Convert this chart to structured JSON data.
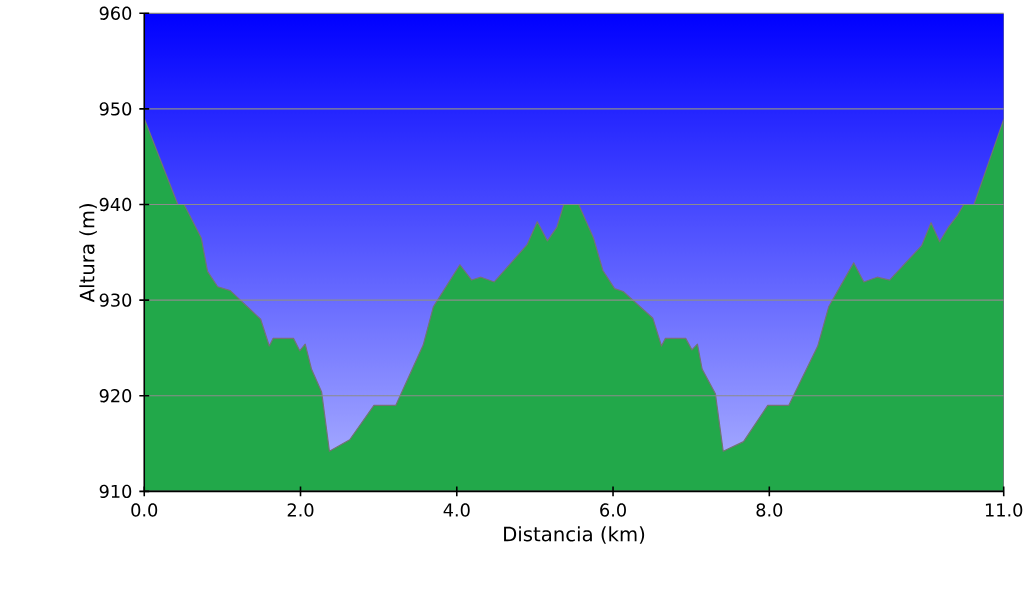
{
  "chart_data": {
    "type": "area",
    "xlabel": "Distancia   (km)",
    "ylabel": "Altura (m)",
    "xlim": [
      0,
      11
    ],
    "xticks": [
      {
        "value": 0,
        "label": "0.0"
      },
      {
        "value": 2,
        "label": "2.0"
      },
      {
        "value": 4,
        "label": "4.0"
      },
      {
        "value": 6,
        "label": "6.0"
      },
      {
        "value": 8,
        "label": "8.0"
      },
      {
        "value": 11,
        "label": "11.0"
      }
    ],
    "ylim": [
      910,
      960
    ],
    "yticks": [
      910,
      920,
      930,
      940,
      950,
      960
    ],
    "grid": "y",
    "series": [
      {
        "color": "#22a84a",
        "x": [
          0,
          0.43,
          0.51,
          0.73,
          0.81,
          0.94,
          1.1,
          1.49,
          1.6,
          1.65,
          1.91,
          1.99,
          2.06,
          2.14,
          2.27,
          2.37,
          2.63,
          2.94,
          3.22,
          3.57,
          3.7,
          4.04,
          4.19,
          4.31,
          4.48,
          4.9,
          5.03,
          5.16,
          5.28,
          5.37,
          5.56,
          5.75,
          5.87,
          6.02,
          6.13,
          6.51,
          6.62,
          6.67,
          6.93,
          7.01,
          7.08,
          7.14,
          7.31,
          7.41,
          7.67,
          7.98,
          8.25,
          8.62,
          8.76,
          9.08,
          9.21,
          9.38,
          9.54,
          9.95,
          10.07,
          10.18,
          10.29,
          10.41,
          10.49,
          10.62,
          11
        ],
        "values": [
          949,
          940,
          940,
          936.5,
          933,
          931.4,
          931,
          928,
          925.2,
          926,
          926,
          924.7,
          925.4,
          922.8,
          920.4,
          914.2,
          915.4,
          919,
          919,
          925.3,
          929.3,
          933.7,
          932.1,
          932.4,
          931.9,
          935.8,
          938.2,
          936.2,
          937.6,
          940,
          940,
          936.5,
          933.1,
          931.2,
          930.9,
          928.1,
          925.2,
          926,
          926,
          924.8,
          925.4,
          922.8,
          920.2,
          914.2,
          915.2,
          919,
          919,
          925.2,
          929.3,
          933.9,
          931.9,
          932.4,
          932.1,
          935.7,
          938.1,
          936.1,
          937.6,
          938.9,
          940,
          940,
          948.9
        ]
      }
    ]
  }
}
